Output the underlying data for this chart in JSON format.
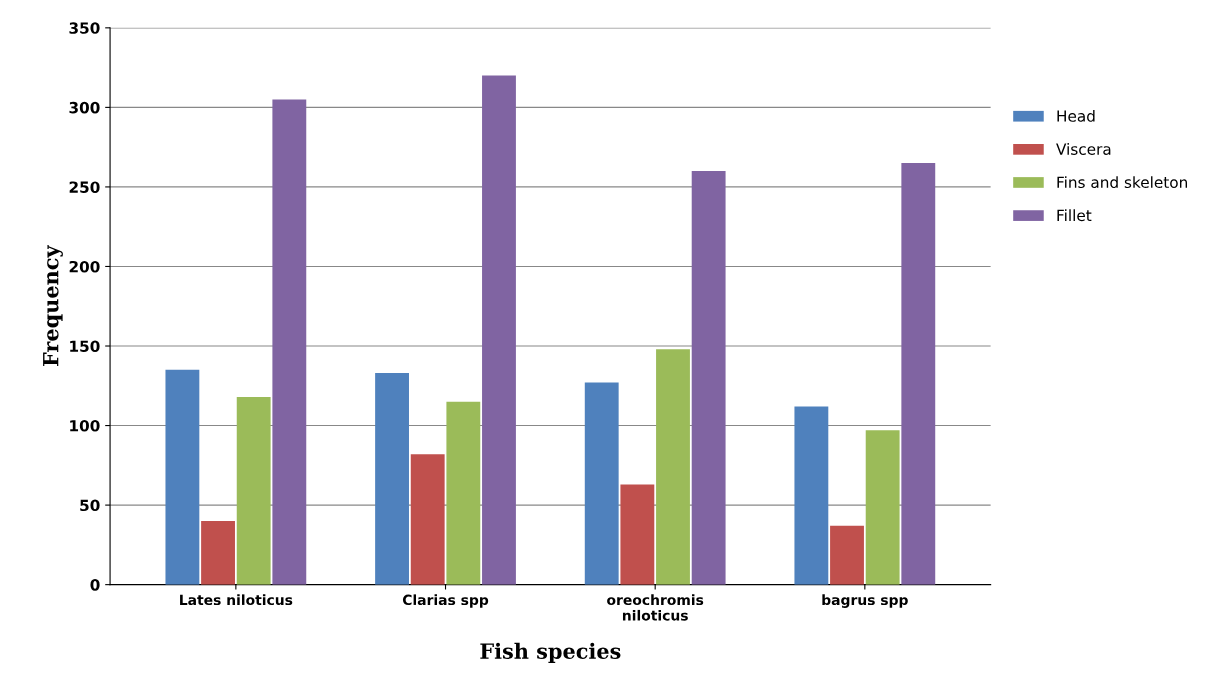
{
  "chart_data": {
    "type": "bar",
    "xlabel": "Fish species",
    "ylabel": "Frequency",
    "categories": [
      "Lates niloticus",
      "Clarias spp",
      "oreochromis\nniloticus",
      "bagrus spp"
    ],
    "series": [
      {
        "name": "Head",
        "color": "#4f81bd",
        "values": [
          135,
          133,
          127,
          112
        ]
      },
      {
        "name": "Viscera",
        "color": "#c0504d",
        "values": [
          40,
          82,
          63,
          37
        ]
      },
      {
        "name": "Fins and skeleton",
        "color": "#9bbb59",
        "values": [
          118,
          115,
          148,
          97
        ]
      },
      {
        "name": "Fillet",
        "color": "#8064a2",
        "values": [
          305,
          320,
          260,
          265
        ]
      }
    ],
    "ylim": [
      0,
      350
    ],
    "yticks": [
      0,
      50,
      100,
      150,
      200,
      250,
      300,
      350
    ],
    "grid": "y",
    "legend": "right"
  }
}
